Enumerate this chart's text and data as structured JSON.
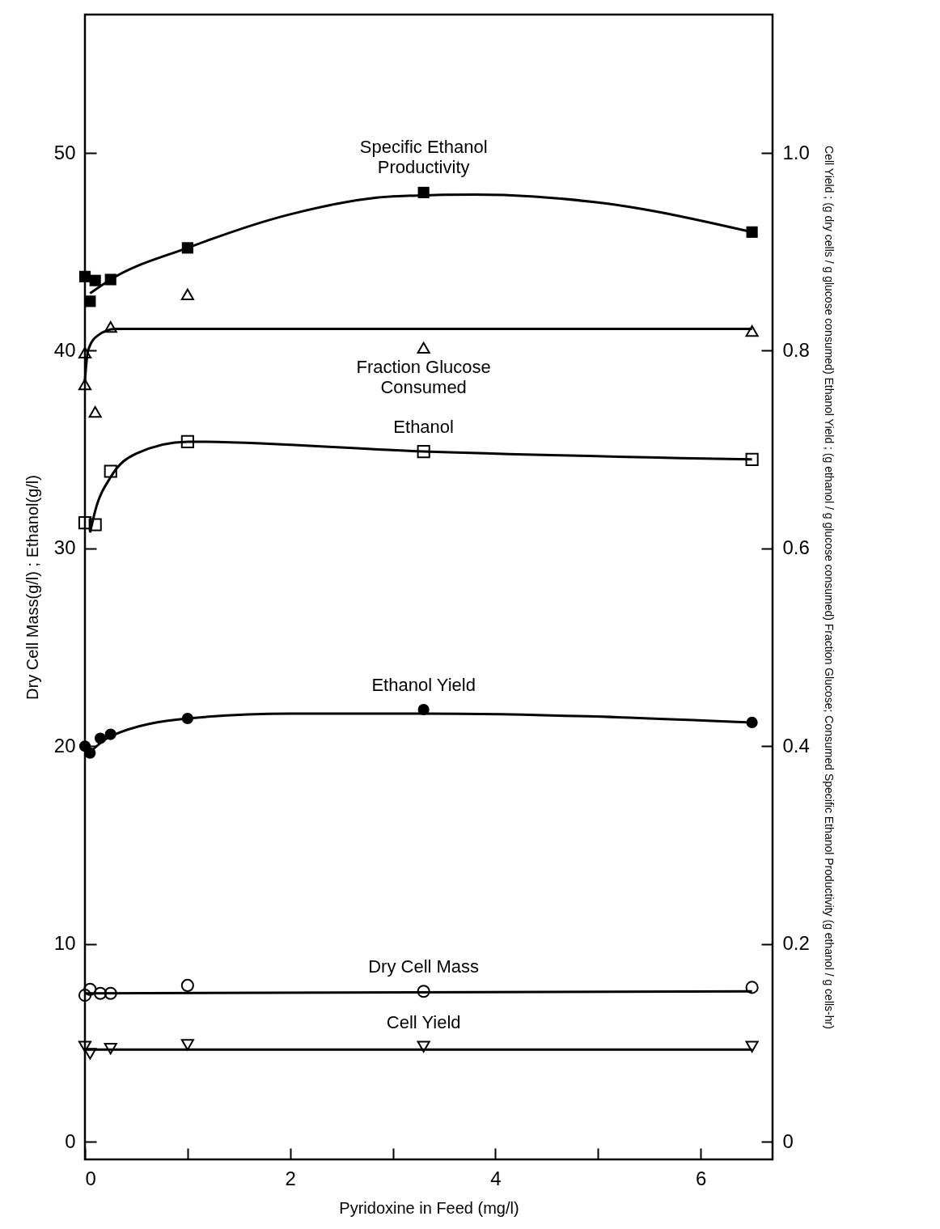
{
  "chart_data": {
    "type": "scatter",
    "xlabel": "Pyridoxine in Feed (mg/l)",
    "ylabel": "Dry Cell Mass(g/l) ;  Ethanol(g/l)",
    "y2label": "Cell Yield ; (g dry cells / g glucose consumed)    Ethanol Yield ; (g ethanol / g glucose consumed)    Fraction Glucose; Consumed    Specific Ethanol Productivity (g ethanol / g cells-hr)",
    "xlim": [
      0,
      6.7
    ],
    "xticks": [
      0,
      {
        "value": 1,
        "label": null
      },
      2,
      {
        "value": 3,
        "label": null
      },
      4,
      {
        "value": 5,
        "label": null
      },
      6
    ],
    "ylim": [
      -0.9,
      57
    ],
    "yticks": [
      0,
      10,
      20,
      30,
      40,
      50
    ],
    "y2lim": [
      -0.018,
      1.14
    ],
    "y2ticks": [
      0,
      0.2,
      0.4,
      0.6,
      0.8,
      {
        "value": 1,
        "label": "1.0"
      }
    ],
    "grid": false,
    "series": [
      {
        "name": "Specific Ethanol\nProductivity",
        "axis": "y2",
        "marker": "square",
        "color": "#000000",
        "x": [
          0,
          0.05,
          0.1,
          0.25,
          1,
          3.3,
          6.5
        ],
        "values": [
          0.875,
          0.85,
          0.871,
          0.872,
          0.904,
          0.96,
          0.92
        ]
      },
      {
        "type": "line",
        "axis": "y2",
        "color": "#000000",
        "x": [
          0.05,
          0.25,
          1,
          2,
          3,
          3.8,
          5,
          6.5
        ],
        "values": [
          0.858,
          0.872,
          0.904,
          0.938,
          0.956,
          0.958,
          0.95,
          0.92
        ]
      },
      {
        "name": "Fraction Glucose\nConsumed",
        "axis": "y2",
        "marker": "triangle-open",
        "color": "#000000",
        "x": [
          0,
          0,
          0.1,
          0.25,
          1,
          3.3,
          6.5
        ],
        "values": [
          0.766,
          0.798,
          0.738,
          0.824,
          0.857,
          0.803,
          0.82
        ]
      },
      {
        "type": "line",
        "axis": "y2",
        "color": "#000000",
        "x": [
          0,
          0.03,
          0.12,
          0.3,
          6.5
        ],
        "values": [
          0.77,
          0.8,
          0.815,
          0.822,
          0.822
        ]
      },
      {
        "name": "Ethanol",
        "axis": "y",
        "marker": "square-open",
        "color": "#000000",
        "x": [
          0,
          0.1,
          0.25,
          1,
          3.3,
          6.5
        ],
        "values": [
          31.3,
          31.2,
          33.9,
          35.4,
          34.9,
          34.5
        ]
      },
      {
        "type": "line",
        "axis": "y",
        "color": "#000000",
        "x": [
          0.05,
          0.1,
          0.25,
          0.5,
          1,
          3.3,
          6.5
        ],
        "values": [
          30.8,
          31.9,
          33.6,
          34.8,
          35.4,
          34.9,
          34.5
        ]
      },
      {
        "name": "Ethanol Yield",
        "axis": "y2",
        "marker": "circle",
        "color": "#000000",
        "x": [
          0,
          0.05,
          0.15,
          0.25,
          1,
          3.3,
          6.5
        ],
        "values": [
          0.4,
          0.393,
          0.408,
          0.412,
          0.428,
          0.437,
          0.424
        ]
      },
      {
        "type": "line",
        "axis": "y2",
        "color": "#000000",
        "x": [
          0.05,
          0.25,
          1,
          2,
          3.3,
          6.5
        ],
        "values": [
          0.394,
          0.41,
          0.428,
          0.433,
          0.433,
          0.424
        ]
      },
      {
        "name": "Dry Cell Mass",
        "axis": "y",
        "marker": "circle-open",
        "color": "#000000",
        "x": [
          0,
          0.05,
          0.15,
          0.25,
          1,
          3.3,
          6.5
        ],
        "values": [
          7.4,
          7.7,
          7.5,
          7.5,
          7.9,
          7.6,
          7.8
        ]
      },
      {
        "type": "line",
        "axis": "y",
        "color": "#000000",
        "x": [
          0,
          6.5
        ],
        "values": [
          7.5,
          7.6
        ]
      },
      {
        "name": "Cell Yield",
        "axis": "y2",
        "marker": "triangle-down-open",
        "color": "#000000",
        "x": [
          0,
          0.05,
          0.25,
          1,
          3.3,
          6.5
        ],
        "values": [
          0.096,
          0.089,
          0.094,
          0.098,
          0.096,
          0.096
        ]
      },
      {
        "type": "line",
        "axis": "y2",
        "color": "#000000",
        "x": [
          0,
          6.5
        ],
        "values": [
          0.093,
          0.093
        ]
      }
    ]
  }
}
